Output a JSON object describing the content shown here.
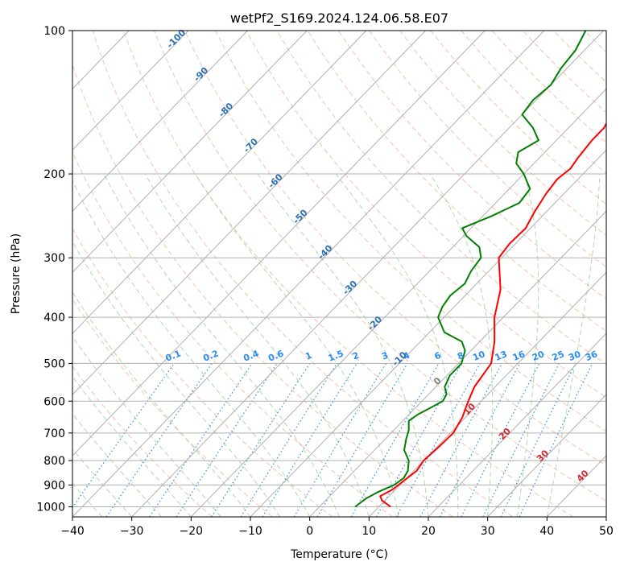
{
  "chart_data": {
    "type": "line",
    "subtype": "skew-T log-P diagram",
    "title": "wetPf2_S169.2024.124.06.58.E07",
    "xlabel": "Temperature (°C)",
    "ylabel": "Pressure (hPa)",
    "xlim": [
      -40,
      50
    ],
    "ylim": [
      1050,
      100
    ],
    "y_scale": "log",
    "x_ticks": [
      -40,
      -30,
      -20,
      -10,
      0,
      10,
      20,
      30,
      40,
      50
    ],
    "y_ticks": [
      100,
      200,
      300,
      400,
      500,
      600,
      700,
      800,
      900,
      1000
    ],
    "grid": true,
    "series": [
      {
        "role": "temperature",
        "color": "#ff0000",
        "points": [
          [
            1000,
            12.0
          ],
          [
            970,
            9.5
          ],
          [
            950,
            8.5
          ],
          [
            920,
            9.5
          ],
          [
            880,
            10.0
          ],
          [
            840,
            10.5
          ],
          [
            800,
            10.0
          ],
          [
            750,
            10.3
          ],
          [
            700,
            10.5
          ],
          [
            650,
            9.5
          ],
          [
            600,
            7.8
          ],
          [
            560,
            6.5
          ],
          [
            500,
            5.5
          ],
          [
            450,
            2.5
          ],
          [
            400,
            -1.5
          ],
          [
            350,
            -5.0
          ],
          [
            300,
            -10.5
          ],
          [
            280,
            -11.0
          ],
          [
            260,
            -10.8
          ],
          [
            240,
            -12.0
          ],
          [
            220,
            -13.0
          ],
          [
            205,
            -13.5
          ],
          [
            195,
            -13.0
          ],
          [
            185,
            -13.5
          ],
          [
            170,
            -14.0
          ],
          [
            160,
            -14.0
          ],
          [
            150,
            -15.0
          ],
          [
            140,
            -17.0
          ],
          [
            130,
            -19.5
          ],
          [
            120,
            -22.0
          ],
          [
            110,
            -23.0
          ],
          [
            100,
            -25.0
          ]
        ]
      },
      {
        "role": "dewpoint",
        "color": "#008000",
        "points": [
          [
            1000,
            6.0
          ],
          [
            960,
            6.5
          ],
          [
            930,
            7.5
          ],
          [
            900,
            9.0
          ],
          [
            870,
            9.5
          ],
          [
            840,
            9.0
          ],
          [
            800,
            7.5
          ],
          [
            760,
            5.0
          ],
          [
            720,
            3.5
          ],
          [
            690,
            2.5
          ],
          [
            660,
            1.0
          ],
          [
            640,
            1.5
          ],
          [
            620,
            2.5
          ],
          [
            600,
            3.5
          ],
          [
            580,
            3.0
          ],
          [
            560,
            1.5
          ],
          [
            530,
            0.5
          ],
          [
            500,
            0.5
          ],
          [
            470,
            -1.0
          ],
          [
            450,
            -3.0
          ],
          [
            430,
            -7.5
          ],
          [
            400,
            -11.0
          ],
          [
            380,
            -12.0
          ],
          [
            360,
            -12.5
          ],
          [
            340,
            -12.0
          ],
          [
            320,
            -13.0
          ],
          [
            300,
            -13.5
          ],
          [
            285,
            -15.5
          ],
          [
            270,
            -19.5
          ],
          [
            260,
            -21.5
          ],
          [
            245,
            -18.5
          ],
          [
            230,
            -16.0
          ],
          [
            215,
            -16.5
          ],
          [
            200,
            -20.0
          ],
          [
            190,
            -23.0
          ],
          [
            180,
            -24.5
          ],
          [
            170,
            -23.0
          ],
          [
            160,
            -26.0
          ],
          [
            150,
            -30.0
          ],
          [
            140,
            -30.5
          ],
          [
            130,
            -30.0
          ],
          [
            120,
            -31.0
          ],
          [
            110,
            -31.5
          ],
          [
            100,
            -33.0
          ]
        ]
      }
    ],
    "reference_lines": {
      "dry_adiabat_labels": [
        "-100",
        "-90",
        "-80",
        "-70",
        "-60",
        "-50",
        "-40",
        "-30",
        "-20",
        "-10"
      ],
      "mixing_ratio_labels": [
        "0.1",
        "0.2",
        "0.4",
        "0.6",
        "1",
        "1.5",
        "2",
        "3",
        "4",
        "6",
        "8",
        "10",
        "13",
        "16",
        "20",
        "25",
        "30",
        "36"
      ],
      "moist_adiabat_labels": [
        "0",
        "10",
        "20",
        "30",
        "40"
      ],
      "colors": {
        "isotherm": "#b0b0b0",
        "isobar": "#b0b0b0",
        "dry_adiabat": "#f4a58a",
        "moist_adiabat": "#8fcf8f",
        "mixing_ratio": "#2b8cf0",
        "moist_label": "#d62728",
        "dry_label": "#2a6fb5"
      }
    }
  }
}
